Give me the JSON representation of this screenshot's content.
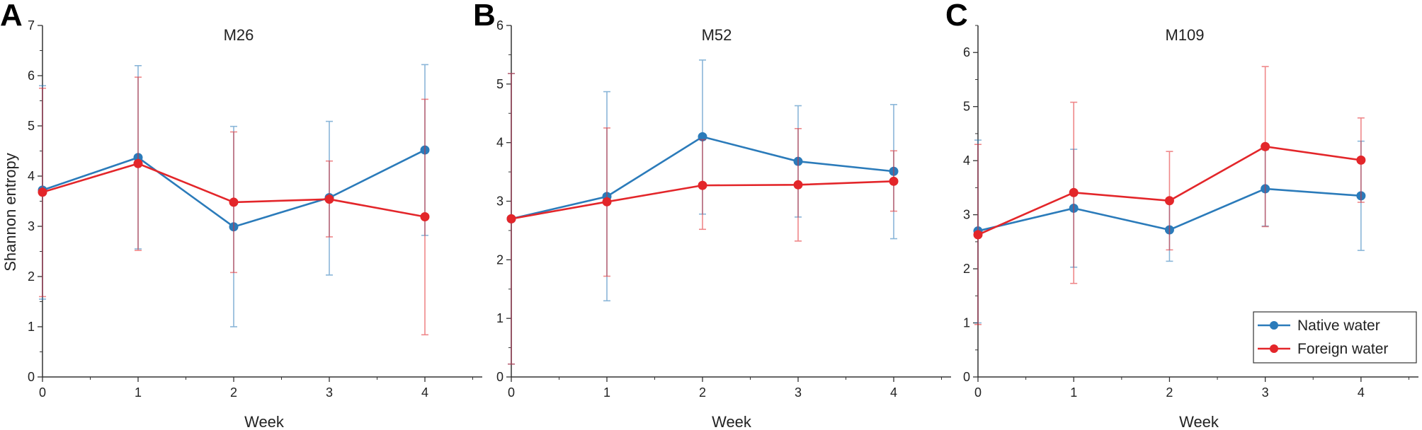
{
  "colors": {
    "native": "#2b7bba",
    "foreign": "#e3262a",
    "axis": "#333333"
  },
  "legend": {
    "native_label": "Native water",
    "foreign_label": "Foreign water"
  },
  "chart_data": [
    {
      "type": "line",
      "panel_label": "A",
      "title": "M26",
      "xlabel": "Week",
      "ylabel": "Shannon entropy",
      "x": [
        0,
        1,
        2,
        3,
        4
      ],
      "xlim": [
        0,
        4.6
      ],
      "ylim": [
        0,
        7
      ],
      "xticks": [
        "0",
        "1",
        "2",
        "3",
        "4"
      ],
      "yticks": [
        "0",
        "1",
        "2",
        "3",
        "4",
        "5",
        "6",
        "7"
      ],
      "series": [
        {
          "name": "Native water",
          "values": [
            3.72,
            4.37,
            2.99,
            3.57,
            4.52
          ],
          "err_low": [
            1.55,
            2.55,
            1.0,
            2.03,
            2.82
          ],
          "err_high": [
            5.8,
            6.2,
            4.99,
            5.09,
            6.22
          ]
        },
        {
          "name": "Foreign water",
          "values": [
            3.68,
            4.25,
            3.48,
            3.54,
            3.19
          ],
          "err_low": [
            1.6,
            2.52,
            2.08,
            2.79,
            0.84
          ],
          "err_high": [
            5.75,
            5.97,
            4.88,
            4.3,
            5.53
          ]
        }
      ]
    },
    {
      "type": "line",
      "panel_label": "B",
      "title": "M52",
      "xlabel": "Week",
      "ylabel": "",
      "x": [
        0,
        1,
        2,
        3,
        4
      ],
      "xlim": [
        0,
        4.6
      ],
      "ylim": [
        0,
        6
      ],
      "xticks": [
        "0",
        "1",
        "2",
        "3",
        "4"
      ],
      "yticks": [
        "0",
        "1",
        "2",
        "3",
        "4",
        "5",
        "6"
      ],
      "series": [
        {
          "name": "Native water",
          "values": [
            2.7,
            3.08,
            4.1,
            3.68,
            3.51
          ],
          "err_low": [
            0.22,
            1.3,
            2.78,
            2.73,
            2.36
          ],
          "err_high": [
            5.18,
            4.87,
            5.41,
            4.63,
            4.65
          ]
        },
        {
          "name": "Foreign water",
          "values": [
            2.7,
            2.99,
            3.27,
            3.28,
            3.34
          ],
          "err_low": [
            0.22,
            1.72,
            2.52,
            2.32,
            2.83
          ],
          "err_high": [
            5.18,
            4.25,
            4.05,
            4.24,
            3.86
          ]
        }
      ]
    },
    {
      "type": "line",
      "panel_label": "C",
      "title": "M109",
      "xlabel": "Week",
      "ylabel": "",
      "x": [
        0,
        1,
        2,
        3,
        4
      ],
      "xlim": [
        0,
        4.6
      ],
      "ylim": [
        0,
        6.5
      ],
      "xticks": [
        "0",
        "1",
        "2",
        "3",
        "4"
      ],
      "yticks": [
        "0",
        "1",
        "2",
        "3",
        "4",
        "5",
        "6"
      ],
      "legend_position": "bottom-right",
      "series": [
        {
          "name": "Native water",
          "values": [
            2.7,
            3.12,
            2.72,
            3.48,
            3.35
          ],
          "err_low": [
            1.0,
            2.03,
            2.14,
            2.79,
            2.34
          ],
          "err_high": [
            4.38,
            4.21,
            3.3,
            4.2,
            4.36
          ]
        },
        {
          "name": "Foreign water",
          "values": [
            2.63,
            3.41,
            3.26,
            4.26,
            4.01
          ],
          "err_low": [
            0.97,
            1.73,
            2.35,
            2.78,
            3.23
          ],
          "err_high": [
            4.3,
            5.08,
            4.17,
            5.74,
            4.79
          ]
        }
      ]
    }
  ]
}
